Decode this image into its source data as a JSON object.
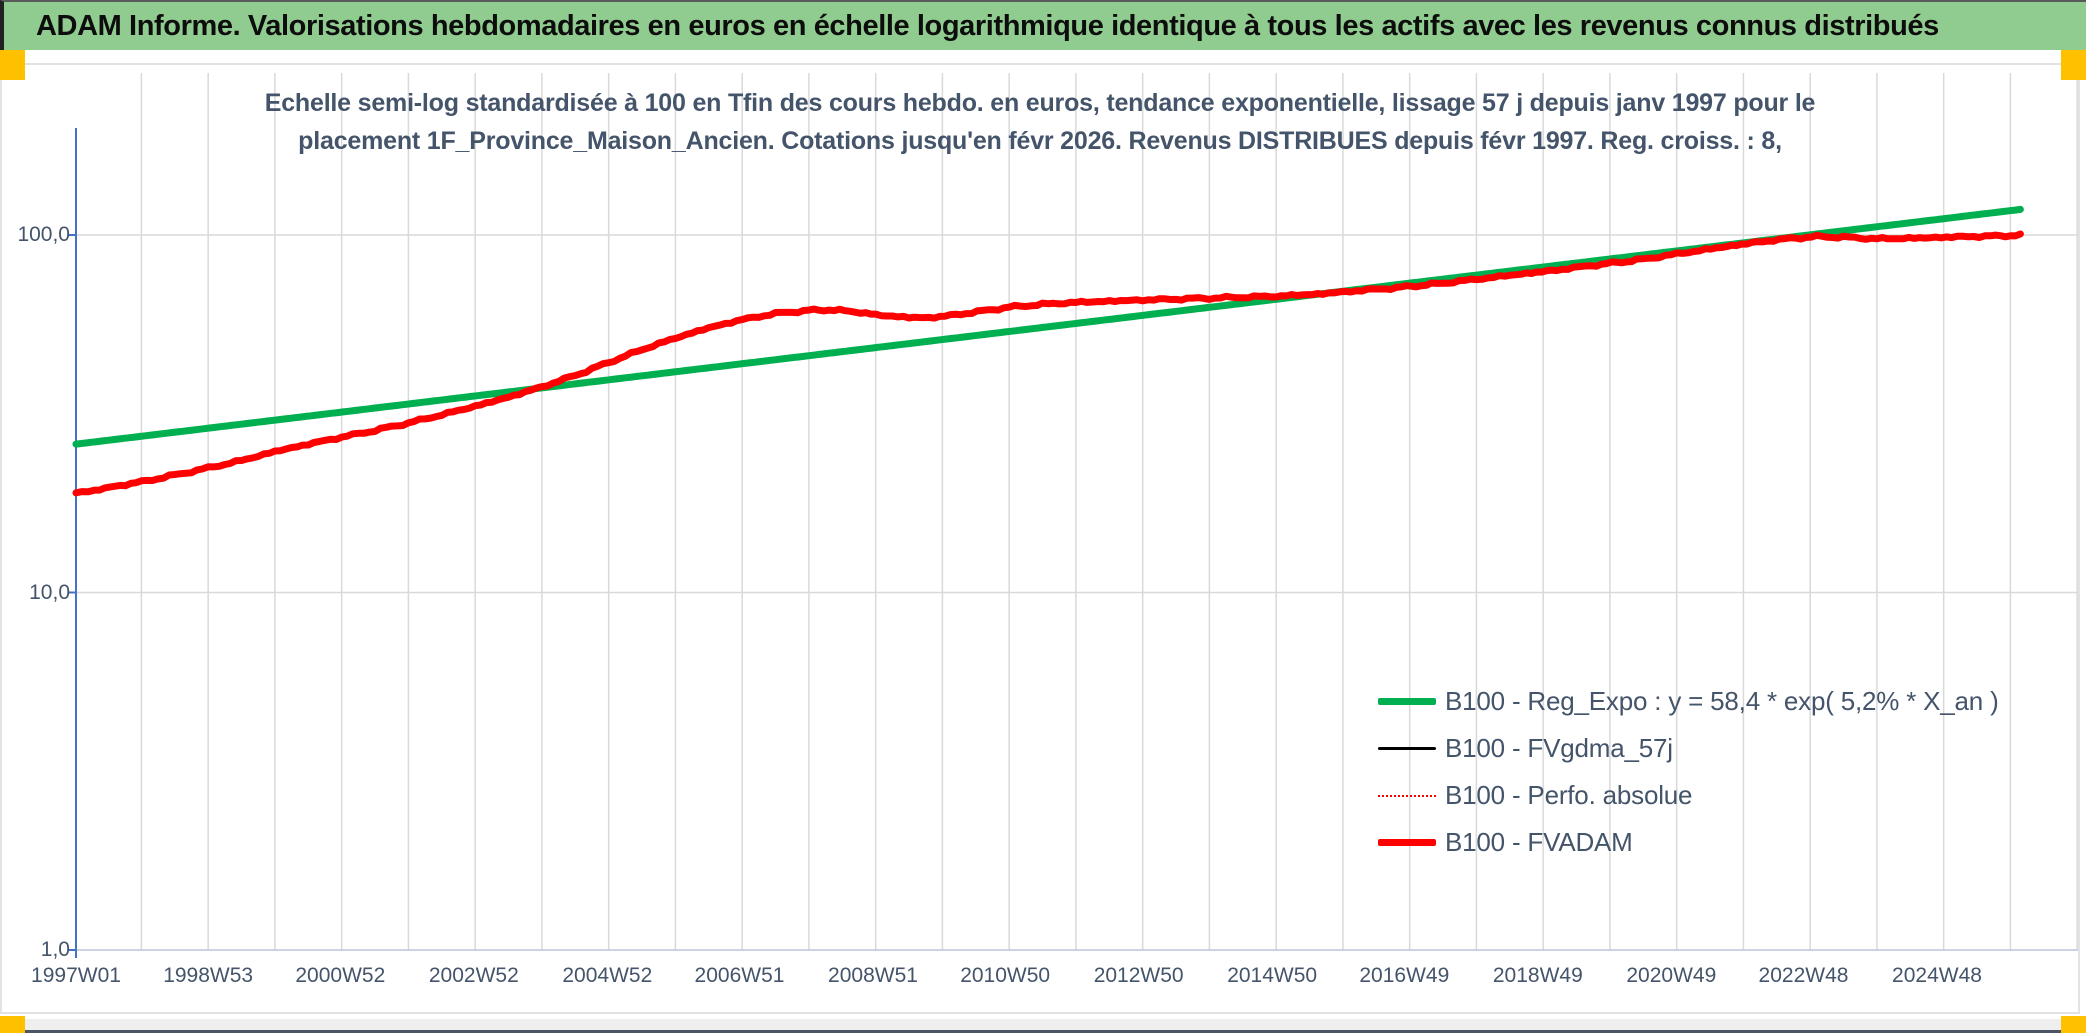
{
  "header": {
    "title": "ADAM Informe. Valorisations hebdomadaires en euros en échelle logarithmique identique à tous les actifs avec les revenus connus distribués"
  },
  "colors": {
    "header_background": "#90CC90",
    "corner_handles": "#FFC000",
    "regression_green": "#00B050",
    "valuation_red": "#FF0000",
    "smoothing_black": "#000000",
    "axis_blue": "#4472C4",
    "gridline_gray": "#D9D9D9",
    "text_slate": "#44546A"
  },
  "chart": {
    "title_line1": "Echelle semi-log standardisée à 100 en Tfin des cours hebdo. en euros, tendance exponentielle, lissage 57 j depuis janv 1997 pour le",
    "title_line2": "placement 1F_Province_Maison_Ancien. Cotations jusqu'en févr 2026. Revenus DISTRIBUES depuis févr 1997. Reg. croiss. : 8,"
  },
  "chart_data": {
    "type": "line",
    "y_scale": "log10",
    "ylim": [
      1,
      200
    ],
    "xlim": [
      1997.02,
      2027.0
    ],
    "grid": {
      "vertical": "yearly",
      "horizontal": "log-decades",
      "on": true
    },
    "legend_position": "lower-right-inside",
    "y_ticks": [
      {
        "value": 100,
        "label": "100,0"
      },
      {
        "value": 10,
        "label": "10,0"
      },
      {
        "value": 1,
        "label": "1,0"
      }
    ],
    "x_ticks": [
      {
        "t": 1997.02,
        "label": "1997W01"
      },
      {
        "t": 1999.0,
        "label": "1998W53"
      },
      {
        "t": 2000.98,
        "label": "2000W52"
      },
      {
        "t": 2002.98,
        "label": "2002W52"
      },
      {
        "t": 2004.98,
        "label": "2004W52"
      },
      {
        "t": 2006.96,
        "label": "2006W51"
      },
      {
        "t": 2008.96,
        "label": "2008W51"
      },
      {
        "t": 2010.94,
        "label": "2010W50"
      },
      {
        "t": 2012.94,
        "label": "2012W50"
      },
      {
        "t": 2014.94,
        "label": "2014W50"
      },
      {
        "t": 2016.92,
        "label": "2016W49"
      },
      {
        "t": 2018.92,
        "label": "2018W49"
      },
      {
        "t": 2020.92,
        "label": "2020W49"
      },
      {
        "t": 2022.9,
        "label": "2022W48"
      },
      {
        "t": 2024.9,
        "label": "2024W48"
      }
    ],
    "series": [
      {
        "name": "B100 - Reg_Expo : y = 58,4 * exp( 5,2% *  X_an )",
        "color": "#00B050",
        "style": "solid",
        "width": 7,
        "jitter": false,
        "points": [
          [
            1997.02,
            26.0
          ],
          [
            2026.15,
            117.9
          ]
        ]
      },
      {
        "name": "B100 - FVgdma_57j",
        "color": "#000000",
        "style": "solid",
        "width": 3.5,
        "jitter": false,
        "same_as": "B100 - FVADAM"
      },
      {
        "name": "B100 - Perfo. absolue",
        "color": "#FF0000",
        "style": "dotted",
        "width": 2,
        "jitter": false,
        "same_as": "B100 - FVADAM"
      },
      {
        "name": "B100 - FVADAM",
        "color": "#FF0000",
        "style": "solid",
        "width": 7,
        "jitter": true,
        "points": [
          [
            1997.02,
            19.0
          ],
          [
            1997.3,
            19.3
          ],
          [
            1997.6,
            19.8
          ],
          [
            1998.0,
            20.4
          ],
          [
            1998.5,
            21.3
          ],
          [
            1999.0,
            22.3
          ],
          [
            1999.5,
            23.4
          ],
          [
            2000.0,
            24.8
          ],
          [
            2000.5,
            26.0
          ],
          [
            2001.0,
            27.2
          ],
          [
            2001.5,
            28.4
          ],
          [
            2002.0,
            29.8
          ],
          [
            2002.5,
            31.4
          ],
          [
            2003.0,
            33.2
          ],
          [
            2003.5,
            35.2
          ],
          [
            2004.0,
            37.6
          ],
          [
            2004.5,
            40.5
          ],
          [
            2005.0,
            44.0
          ],
          [
            2005.5,
            47.8
          ],
          [
            2006.0,
            51.5
          ],
          [
            2006.5,
            55.0
          ],
          [
            2007.0,
            58.0
          ],
          [
            2007.5,
            60.3
          ],
          [
            2008.0,
            61.5
          ],
          [
            2008.3,
            61.8
          ],
          [
            2008.7,
            61.0
          ],
          [
            2009.0,
            59.8
          ],
          [
            2009.5,
            58.8
          ],
          [
            2009.8,
            58.7
          ],
          [
            2010.2,
            59.8
          ],
          [
            2010.6,
            61.3
          ],
          [
            2011.0,
            62.8
          ],
          [
            2011.5,
            64.0
          ],
          [
            2012.0,
            64.8
          ],
          [
            2012.5,
            65.3
          ],
          [
            2013.0,
            65.8
          ],
          [
            2013.5,
            66.2
          ],
          [
            2014.0,
            66.6
          ],
          [
            2014.5,
            67.0
          ],
          [
            2015.0,
            67.4
          ],
          [
            2015.7,
            68.5
          ],
          [
            2016.2,
            69.8
          ],
          [
            2016.8,
            71.2
          ],
          [
            2017.4,
            73.0
          ],
          [
            2018.0,
            75.2
          ],
          [
            2018.6,
            77.5
          ],
          [
            2019.2,
            79.8
          ],
          [
            2019.8,
            82.5
          ],
          [
            2020.4,
            85.0
          ],
          [
            2021.0,
            88.5
          ],
          [
            2021.6,
            92.0
          ],
          [
            2022.2,
            95.5
          ],
          [
            2022.7,
            97.8
          ],
          [
            2023.1,
            99.0
          ],
          [
            2023.5,
            98.6
          ],
          [
            2024.0,
            97.6
          ],
          [
            2024.4,
            97.9
          ],
          [
            2024.8,
            98.3
          ],
          [
            2025.2,
            98.8
          ],
          [
            2025.7,
            99.3
          ],
          [
            2026.15,
            99.8
          ]
        ]
      }
    ]
  }
}
